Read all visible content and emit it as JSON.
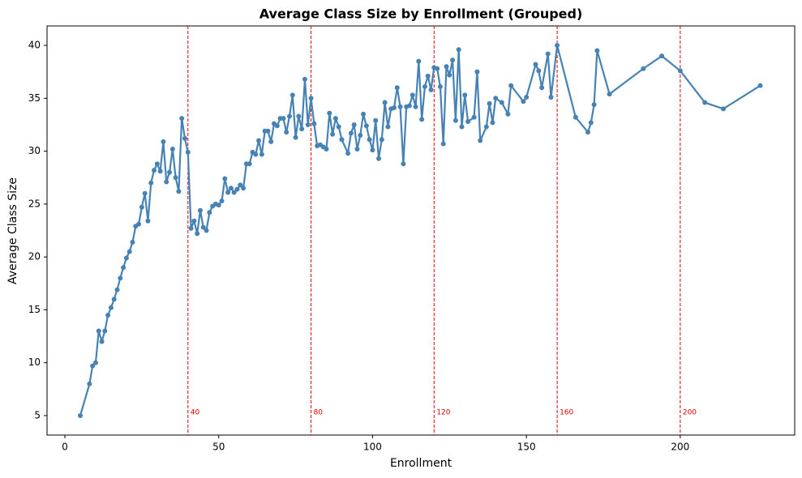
{
  "chart_data": {
    "type": "line",
    "title": "Average Class Size by Enrollment (Grouped)",
    "x_label": "Enrollment",
    "y_label": "Average Class Size",
    "color": "#4682b4",
    "vline_color": "#e00000",
    "vlines": [
      40,
      80,
      120,
      160,
      200
    ],
    "xlim": [
      -5.8,
      237.2
    ],
    "ylim": [
      3.16,
      41.84
    ],
    "xticks": [
      0,
      50,
      100,
      150,
      200
    ],
    "yticks": [
      5,
      10,
      15,
      20,
      25,
      30,
      35,
      40
    ],
    "x": [
      5,
      8,
      9,
      10,
      11,
      12,
      13,
      14,
      15,
      16,
      17,
      18,
      19,
      20,
      21,
      22,
      23,
      24,
      25,
      26,
      27,
      28,
      29,
      30,
      31,
      32,
      33,
      34,
      35,
      36,
      37,
      38,
      39,
      40,
      41,
      42,
      43,
      44,
      45,
      46,
      47,
      48,
      49,
      50,
      51,
      52,
      53,
      54,
      55,
      56,
      57,
      58,
      59,
      60,
      61,
      62,
      63,
      64,
      65,
      66,
      67,
      68,
      69,
      70,
      71,
      72,
      73,
      74,
      75,
      76,
      77,
      78,
      79,
      80,
      81,
      82,
      83,
      84,
      85,
      86,
      87,
      88,
      89,
      90,
      92,
      93,
      94,
      95,
      96,
      97,
      98,
      99,
      100,
      101,
      102,
      103,
      104,
      105,
      106,
      107,
      108,
      109,
      110,
      111,
      112,
      113,
      114,
      115,
      116,
      117,
      118,
      119,
      120,
      121,
      122,
      123,
      124,
      125,
      126,
      127,
      128,
      129,
      130,
      131,
      133,
      134,
      135,
      137,
      138,
      139,
      140,
      142,
      144,
      145,
      149,
      150,
      153,
      154,
      155,
      157,
      158,
      160,
      166,
      170,
      171,
      172,
      173,
      177,
      188,
      194,
      200,
      208,
      214,
      226
    ],
    "values": [
      5.0,
      8.0,
      9.7,
      10.0,
      13.0,
      12.0,
      13.0,
      14.5,
      15.2,
      16.0,
      16.9,
      18.0,
      19.0,
      19.9,
      20.5,
      21.4,
      22.9,
      23.1,
      24.7,
      26.0,
      23.4,
      27.0,
      28.2,
      28.8,
      28.1,
      30.9,
      27.1,
      28.0,
      30.2,
      27.5,
      26.2,
      33.1,
      31.2,
      29.9,
      22.7,
      23.4,
      22.2,
      24.4,
      22.8,
      22.5,
      24.2,
      24.8,
      25.0,
      24.9,
      25.3,
      27.4,
      26.1,
      26.5,
      26.1,
      26.4,
      26.8,
      26.5,
      28.8,
      28.8,
      29.9,
      29.7,
      31.0,
      29.7,
      31.9,
      31.9,
      30.9,
      32.6,
      32.4,
      33.1,
      33.1,
      31.8,
      33.3,
      35.3,
      31.3,
      33.3,
      32.1,
      36.8,
      32.5,
      35.0,
      32.6,
      30.5,
      30.6,
      30.4,
      30.2,
      33.6,
      31.6,
      33.1,
      32.3,
      31.1,
      29.8,
      31.7,
      32.5,
      30.2,
      31.5,
      33.5,
      32.4,
      31.1,
      30.1,
      32.9,
      29.3,
      31.1,
      34.6,
      32.3,
      34.0,
      34.1,
      36.0,
      34.2,
      28.8,
      34.2,
      34.3,
      35.3,
      34.2,
      38.5,
      33.0,
      36.1,
      37.1,
      35.8,
      37.9,
      37.8,
      36.1,
      30.7,
      38.0,
      37.2,
      38.6,
      32.9,
      39.6,
      32.3,
      35.3,
      32.8,
      33.2,
      37.5,
      31.0,
      32.3,
      34.5,
      32.7,
      35.0,
      34.6,
      33.5,
      36.2,
      34.7,
      35.1,
      38.2,
      37.6,
      36.0,
      39.2,
      35.1,
      40.0,
      33.2,
      31.8,
      32.7,
      34.4,
      39.5,
      35.4,
      37.8,
      39.0,
      37.6,
      34.6,
      34.0,
      36.2
    ]
  }
}
